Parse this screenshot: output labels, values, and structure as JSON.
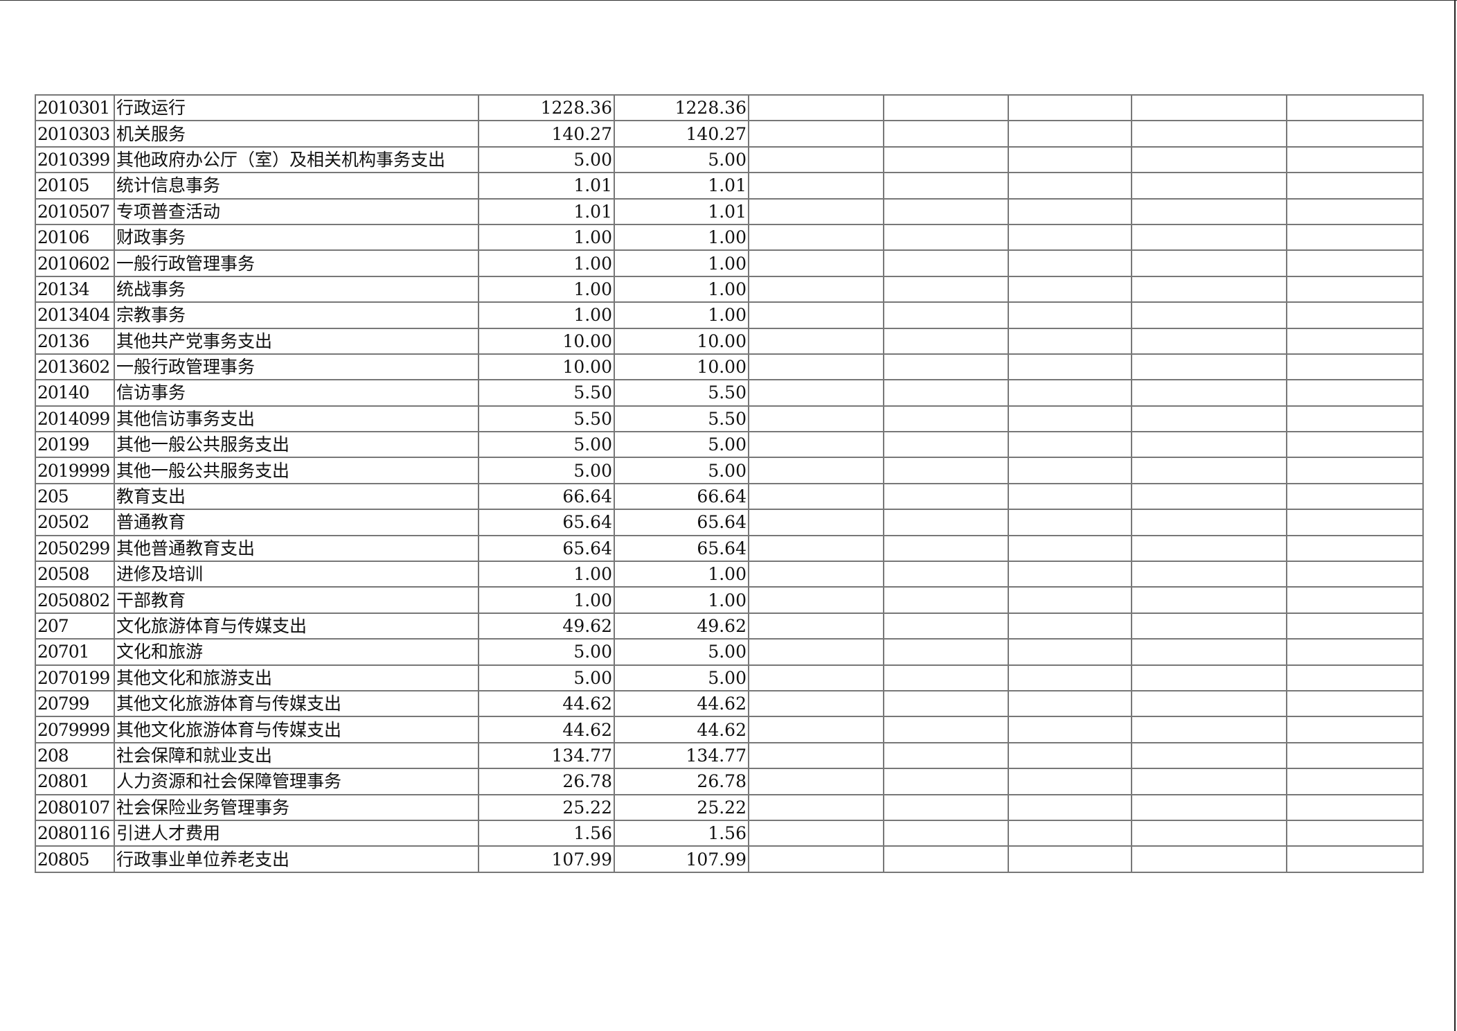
{
  "table": {
    "rows": [
      [
        "2010301",
        "行政运行",
        "1228.36",
        "1228.36"
      ],
      [
        "2010303",
        "机关服务",
        "140.27",
        "140.27"
      ],
      [
        "2010399",
        "其他政府办公厅（室）及相关机构事务支出",
        "5.00",
        "5.00"
      ],
      [
        "20105",
        "统计信息事务",
        "1.01",
        "1.01"
      ],
      [
        "2010507",
        "专项普查活动",
        "1.01",
        "1.01"
      ],
      [
        "20106",
        "财政事务",
        "1.00",
        "1.00"
      ],
      [
        "2010602",
        "一般行政管理事务",
        "1.00",
        "1.00"
      ],
      [
        "20134",
        "统战事务",
        "1.00",
        "1.00"
      ],
      [
        "2013404",
        "宗教事务",
        "1.00",
        "1.00"
      ],
      [
        "20136",
        "其他共产党事务支出",
        "10.00",
        "10.00"
      ],
      [
        "2013602",
        "一般行政管理事务",
        "10.00",
        "10.00"
      ],
      [
        "20140",
        "信访事务",
        "5.50",
        "5.50"
      ],
      [
        "2014099",
        "其他信访事务支出",
        "5.50",
        "5.50"
      ],
      [
        "20199",
        "其他一般公共服务支出",
        "5.00",
        "5.00"
      ],
      [
        "2019999",
        "其他一般公共服务支出",
        "5.00",
        "5.00"
      ],
      [
        "205",
        "教育支出",
        "66.64",
        "66.64"
      ],
      [
        "20502",
        "普通教育",
        "65.64",
        "65.64"
      ],
      [
        "2050299",
        "其他普通教育支出",
        "65.64",
        "65.64"
      ],
      [
        "20508",
        "进修及培训",
        "1.00",
        "1.00"
      ],
      [
        "2050802",
        "干部教育",
        "1.00",
        "1.00"
      ],
      [
        "207",
        "文化旅游体育与传媒支出",
        "49.62",
        "49.62"
      ],
      [
        "20701",
        "文化和旅游",
        "5.00",
        "5.00"
      ],
      [
        "2070199",
        "其他文化和旅游支出",
        "5.00",
        "5.00"
      ],
      [
        "20799",
        "其他文化旅游体育与传媒支出",
        "44.62",
        "44.62"
      ],
      [
        "2079999",
        "其他文化旅游体育与传媒支出",
        "44.62",
        "44.62"
      ],
      [
        "208",
        "社会保障和就业支出",
        "134.77",
        "134.77"
      ],
      [
        "20801",
        "人力资源和社会保障管理事务",
        "26.78",
        "26.78"
      ],
      [
        "2080107",
        "社会保险业务管理事务",
        "25.22",
        "25.22"
      ],
      [
        "2080116",
        "引进人才费用",
        "1.56",
        "1.56"
      ],
      [
        "20805",
        "行政事业单位养老支出",
        "107.99",
        "107.99"
      ]
    ]
  }
}
